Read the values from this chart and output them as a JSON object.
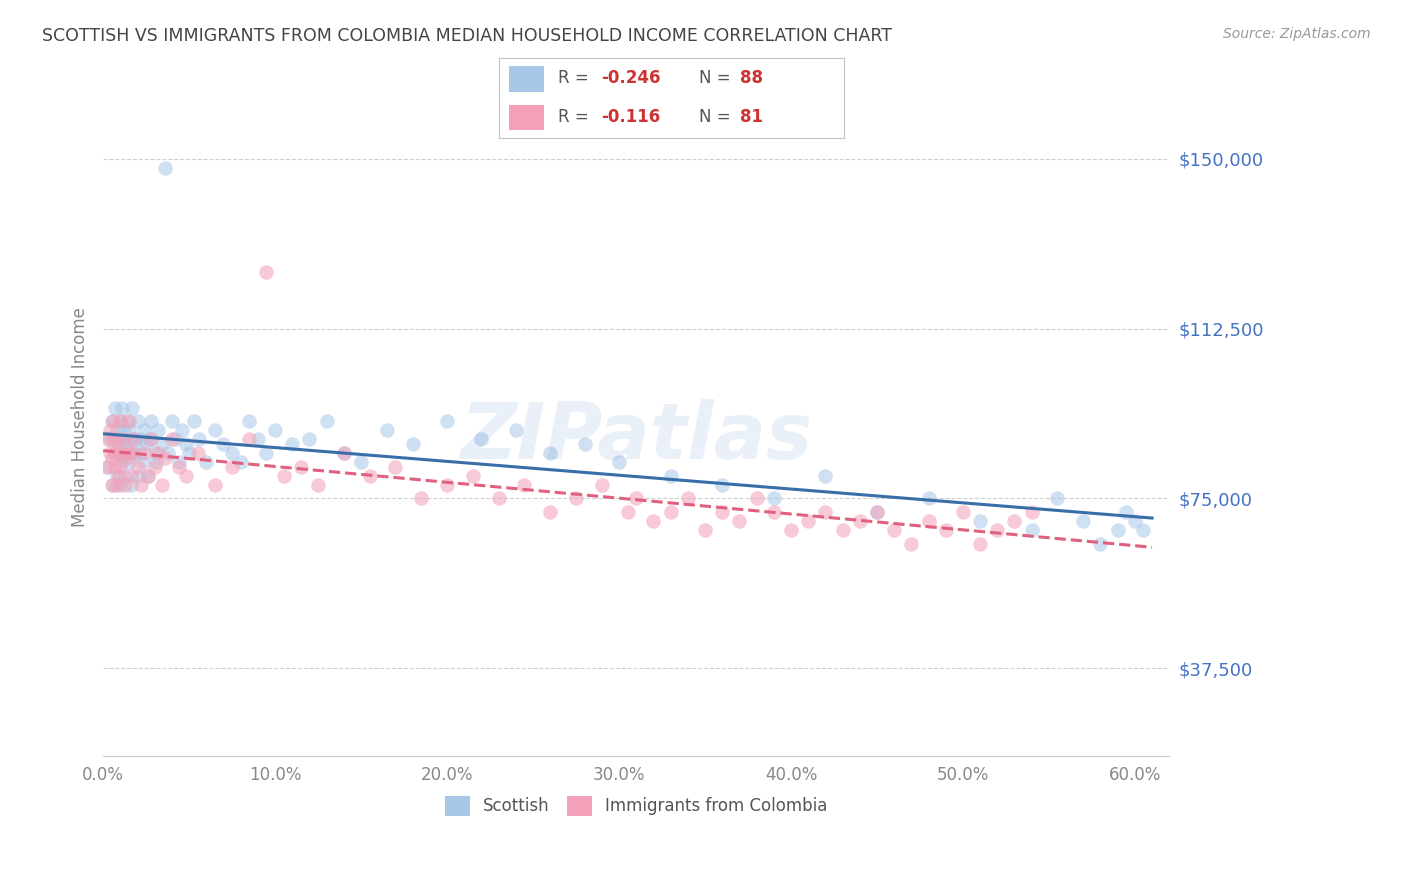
{
  "title": "SCOTTISH VS IMMIGRANTS FROM COLOMBIA MEDIAN HOUSEHOLD INCOME CORRELATION CHART",
  "source": "Source: ZipAtlas.com",
  "ylabel": "Median Household Income",
  "xlim": [
    0.0,
    0.62
  ],
  "ylim": [
    18000,
    168000
  ],
  "scottish_color": "#a8c8e8",
  "scottish_line_color": "#3a6ea8",
  "colombia_color": "#f4a0b8",
  "colombia_line_color": "#e06080",
  "right_label_color": "#4472c4",
  "grid_color": "#d0d0d0",
  "title_color": "#444444",
  "background_color": "#ffffff",
  "marker_size": 110,
  "marker_alpha": 0.55,
  "line_width": 2.2,
  "watermark_text": "ZIPatlas",
  "watermark_alpha": 0.12,
  "watermark_color": "#5588cc",
  "ytick_vals": [
    37500,
    75000,
    112500,
    150000
  ],
  "ytick_labels": [
    "$37,500",
    "$75,000",
    "$112,500",
    "$150,000"
  ],
  "xtick_vals": [
    0.0,
    0.1,
    0.2,
    0.3,
    0.4,
    0.5,
    0.6
  ],
  "xtick_labels": [
    "0.0%",
    "10.0%",
    "20.0%",
    "30.0%",
    "40.0%",
    "50.0%",
    "60.0%"
  ],
  "legend_R_sc": "-0.246",
  "legend_N_sc": "88",
  "legend_R_co": "-0.116",
  "legend_N_co": "81",
  "sc_x": [
    0.003,
    0.004,
    0.005,
    0.006,
    0.007,
    0.007,
    0.008,
    0.008,
    0.009,
    0.01,
    0.01,
    0.01,
    0.011,
    0.011,
    0.012,
    0.012,
    0.013,
    0.013,
    0.014,
    0.014,
    0.015,
    0.015,
    0.016,
    0.016,
    0.017,
    0.018,
    0.019,
    0.02,
    0.02,
    0.021,
    0.022,
    0.023,
    0.024,
    0.025,
    0.026,
    0.027,
    0.028,
    0.03,
    0.031,
    0.032,
    0.034,
    0.036,
    0.038,
    0.04,
    0.042,
    0.044,
    0.046,
    0.048,
    0.05,
    0.053,
    0.056,
    0.06,
    0.065,
    0.07,
    0.075,
    0.08,
    0.085,
    0.09,
    0.095,
    0.1,
    0.11,
    0.12,
    0.13,
    0.14,
    0.15,
    0.165,
    0.18,
    0.2,
    0.22,
    0.24,
    0.26,
    0.28,
    0.3,
    0.33,
    0.36,
    0.39,
    0.42,
    0.45,
    0.48,
    0.51,
    0.54,
    0.555,
    0.57,
    0.58,
    0.59,
    0.595,
    0.6,
    0.605
  ],
  "sc_y": [
    82000,
    88000,
    92000,
    78000,
    85000,
    95000,
    80000,
    90000,
    87000,
    83000,
    92000,
    78000,
    88000,
    95000,
    84000,
    90000,
    87000,
    80000,
    92000,
    85000,
    83000,
    90000,
    88000,
    78000,
    95000,
    85000,
    88000,
    80000,
    92000,
    85000,
    88000,
    83000,
    90000,
    87000,
    80000,
    88000,
    92000,
    85000,
    83000,
    90000,
    87000,
    148000,
    85000,
    92000,
    88000,
    83000,
    90000,
    87000,
    85000,
    92000,
    88000,
    83000,
    90000,
    87000,
    85000,
    83000,
    92000,
    88000,
    85000,
    90000,
    87000,
    88000,
    92000,
    85000,
    83000,
    90000,
    87000,
    92000,
    88000,
    90000,
    85000,
    87000,
    83000,
    80000,
    78000,
    75000,
    80000,
    72000,
    75000,
    70000,
    68000,
    75000,
    70000,
    65000,
    68000,
    72000,
    70000,
    68000
  ],
  "co_x": [
    0.002,
    0.003,
    0.004,
    0.004,
    0.005,
    0.005,
    0.006,
    0.006,
    0.007,
    0.007,
    0.008,
    0.008,
    0.009,
    0.009,
    0.01,
    0.01,
    0.011,
    0.012,
    0.013,
    0.014,
    0.015,
    0.015,
    0.016,
    0.017,
    0.018,
    0.02,
    0.022,
    0.024,
    0.026,
    0.028,
    0.03,
    0.032,
    0.034,
    0.036,
    0.04,
    0.044,
    0.048,
    0.055,
    0.065,
    0.075,
    0.085,
    0.095,
    0.105,
    0.115,
    0.125,
    0.14,
    0.155,
    0.17,
    0.185,
    0.2,
    0.215,
    0.23,
    0.245,
    0.26,
    0.275,
    0.29,
    0.305,
    0.31,
    0.32,
    0.33,
    0.34,
    0.35,
    0.36,
    0.37,
    0.38,
    0.39,
    0.4,
    0.41,
    0.42,
    0.43,
    0.44,
    0.45,
    0.46,
    0.47,
    0.48,
    0.49,
    0.5,
    0.51,
    0.52,
    0.53,
    0.54
  ],
  "co_y": [
    82000,
    88000,
    85000,
    90000,
    78000,
    84000,
    88000,
    92000,
    82000,
    85000,
    78000,
    88000,
    85000,
    80000,
    92000,
    82000,
    85000,
    88000,
    78000,
    84000,
    85000,
    92000,
    80000,
    85000,
    88000,
    82000,
    78000,
    85000,
    80000,
    88000,
    82000,
    85000,
    78000,
    84000,
    88000,
    82000,
    80000,
    85000,
    78000,
    82000,
    88000,
    125000,
    80000,
    82000,
    78000,
    85000,
    80000,
    82000,
    75000,
    78000,
    80000,
    75000,
    78000,
    72000,
    75000,
    78000,
    72000,
    75000,
    70000,
    72000,
    75000,
    68000,
    72000,
    70000,
    75000,
    72000,
    68000,
    70000,
    72000,
    68000,
    70000,
    72000,
    68000,
    65000,
    70000,
    68000,
    72000,
    65000,
    68000,
    70000,
    72000
  ]
}
